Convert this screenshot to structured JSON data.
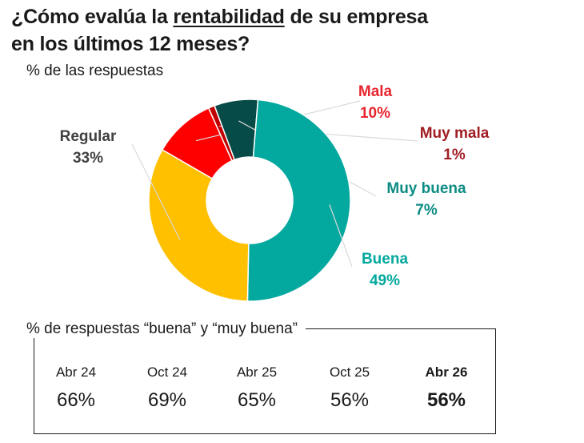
{
  "title": {
    "pre": "¿Cómo evalúa la ",
    "underlined": "rentabilidad",
    "post": " de su empresa",
    "line2": "en los últimos 12 meses?"
  },
  "subtitle": "% de las respuestas",
  "chart_data": [
    {
      "type": "pie",
      "title": "¿Cómo evalúa la rentabilidad de su empresa en los últimos 12 meses?",
      "subtitle": "% de las respuestas",
      "donut": true,
      "slices": [
        {
          "label": "Mala",
          "value": 10,
          "display": "10%",
          "color": "#ff0000",
          "label_color": "#e8262f"
        },
        {
          "label": "Muy mala",
          "value": 1,
          "display": "1%",
          "color": "#c00000",
          "label_color": "#a11d24"
        },
        {
          "label": "Muy buena",
          "value": 7,
          "display": "7%",
          "color": "#064b47",
          "label_color": "#0e8c84"
        },
        {
          "label": "Buena",
          "value": 49,
          "display": "49%",
          "color": "#03a89e",
          "label_color": "#03a89e"
        },
        {
          "label": "Regular",
          "value": 33,
          "display": "33%",
          "color": "#ffc000",
          "label_color": "#404040"
        }
      ]
    },
    {
      "type": "table",
      "title": "% de respuestas “buena” y “muy buena”",
      "categories": [
        "Abr 24",
        "Oct 24",
        "Abr 25",
        "Oct 25",
        "Abr 26"
      ],
      "values": [
        66,
        69,
        65,
        56,
        56
      ],
      "display": [
        "66%",
        "69%",
        "65%",
        "56%",
        "56%"
      ],
      "highlight": "Abr 26"
    }
  ]
}
